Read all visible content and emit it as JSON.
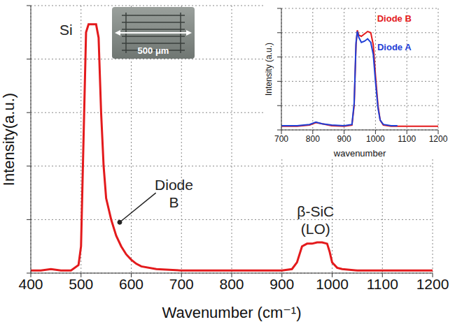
{
  "chart_data": [
    {
      "type": "line",
      "x_label": "Wavenumber (cm⁻¹)",
      "y_label": "Intensity(a.u.)",
      "x": [
        400,
        420,
        440,
        460,
        480,
        495,
        500,
        505,
        510,
        515,
        520,
        525,
        530,
        535,
        540,
        545,
        550,
        560,
        570,
        580,
        590,
        600,
        610,
        620,
        650,
        700,
        800,
        850,
        900,
        920,
        930,
        940,
        950,
        960,
        970,
        980,
        990,
        995,
        1000,
        1010,
        1020,
        1050,
        1100,
        1150,
        1200
      ],
      "values": [
        1,
        1,
        1.5,
        1,
        1,
        3,
        10,
        50,
        90,
        93,
        93,
        93,
        93,
        88,
        60,
        40,
        28,
        20,
        14,
        10,
        7,
        5,
        3.5,
        2.5,
        1.5,
        1,
        1,
        1,
        1,
        1.5,
        4,
        10,
        11,
        11,
        11.5,
        11.5,
        11,
        8,
        4,
        2,
        1.5,
        1,
        1,
        1,
        1
      ],
      "color": "#e31a1c",
      "xlim": [
        400,
        1200
      ],
      "xticks": [
        400,
        500,
        600,
        700,
        800,
        900,
        1000,
        1100,
        1200
      ],
      "ylim": [
        0,
        100
      ],
      "yticks": [
        0,
        20,
        40,
        60,
        80,
        100
      ],
      "grid": true,
      "tick_labels": "x",
      "annotations": [
        {
          "text": "Si",
          "x": 470,
          "y": 91
        },
        {
          "text": "Diode B",
          "x": 685,
          "y": 33,
          "arrow_x": 577,
          "arrow_y": 19
        },
        {
          "text": "β-SiC (LO)",
          "x": 967,
          "y": 23
        }
      ]
    },
    {
      "type": "line",
      "x_label": "wavenumber",
      "y_label": "Intensity (a.u.)",
      "xlim": [
        700,
        1200
      ],
      "xticks": [
        700,
        800,
        900,
        1000,
        1100,
        1200
      ],
      "ylim": [
        0,
        100
      ],
      "yticks": [
        0,
        20,
        40,
        60,
        80,
        100
      ],
      "grid": true,
      "tick_labels": "x",
      "series": [
        {
          "name": "Diode B",
          "color": "#e31a1c",
          "x": [
            700,
            750,
            790,
            810,
            830,
            860,
            900,
            925,
            932,
            938,
            942,
            947,
            955,
            965,
            975,
            985,
            993,
            1000,
            1008,
            1015,
            1025,
            1050,
            1100,
            1150,
            1200
          ],
          "values": [
            3,
            3,
            4,
            6,
            5,
            3.5,
            3,
            4,
            20,
            70,
            82,
            78,
            77,
            79,
            81,
            80,
            70,
            45,
            20,
            8,
            4,
            3,
            3,
            3,
            3
          ]
        },
        {
          "name": "Diode A",
          "color": "#1f3fd6",
          "x": [
            700,
            750,
            790,
            810,
            830,
            860,
            900,
            925,
            932,
            938,
            942,
            947,
            955,
            965,
            975,
            985,
            993,
            1000,
            1008,
            1015,
            1025,
            1050,
            1070
          ],
          "values": [
            3.5,
            3.5,
            4.5,
            6.5,
            5,
            4,
            3.5,
            4.5,
            22,
            72,
            81,
            76,
            72,
            73,
            75,
            72,
            62,
            40,
            18,
            8,
            4.5,
            3.5,
            3.5
          ]
        }
      ]
    }
  ],
  "inset_image": {
    "scale_label": "500 μm"
  }
}
